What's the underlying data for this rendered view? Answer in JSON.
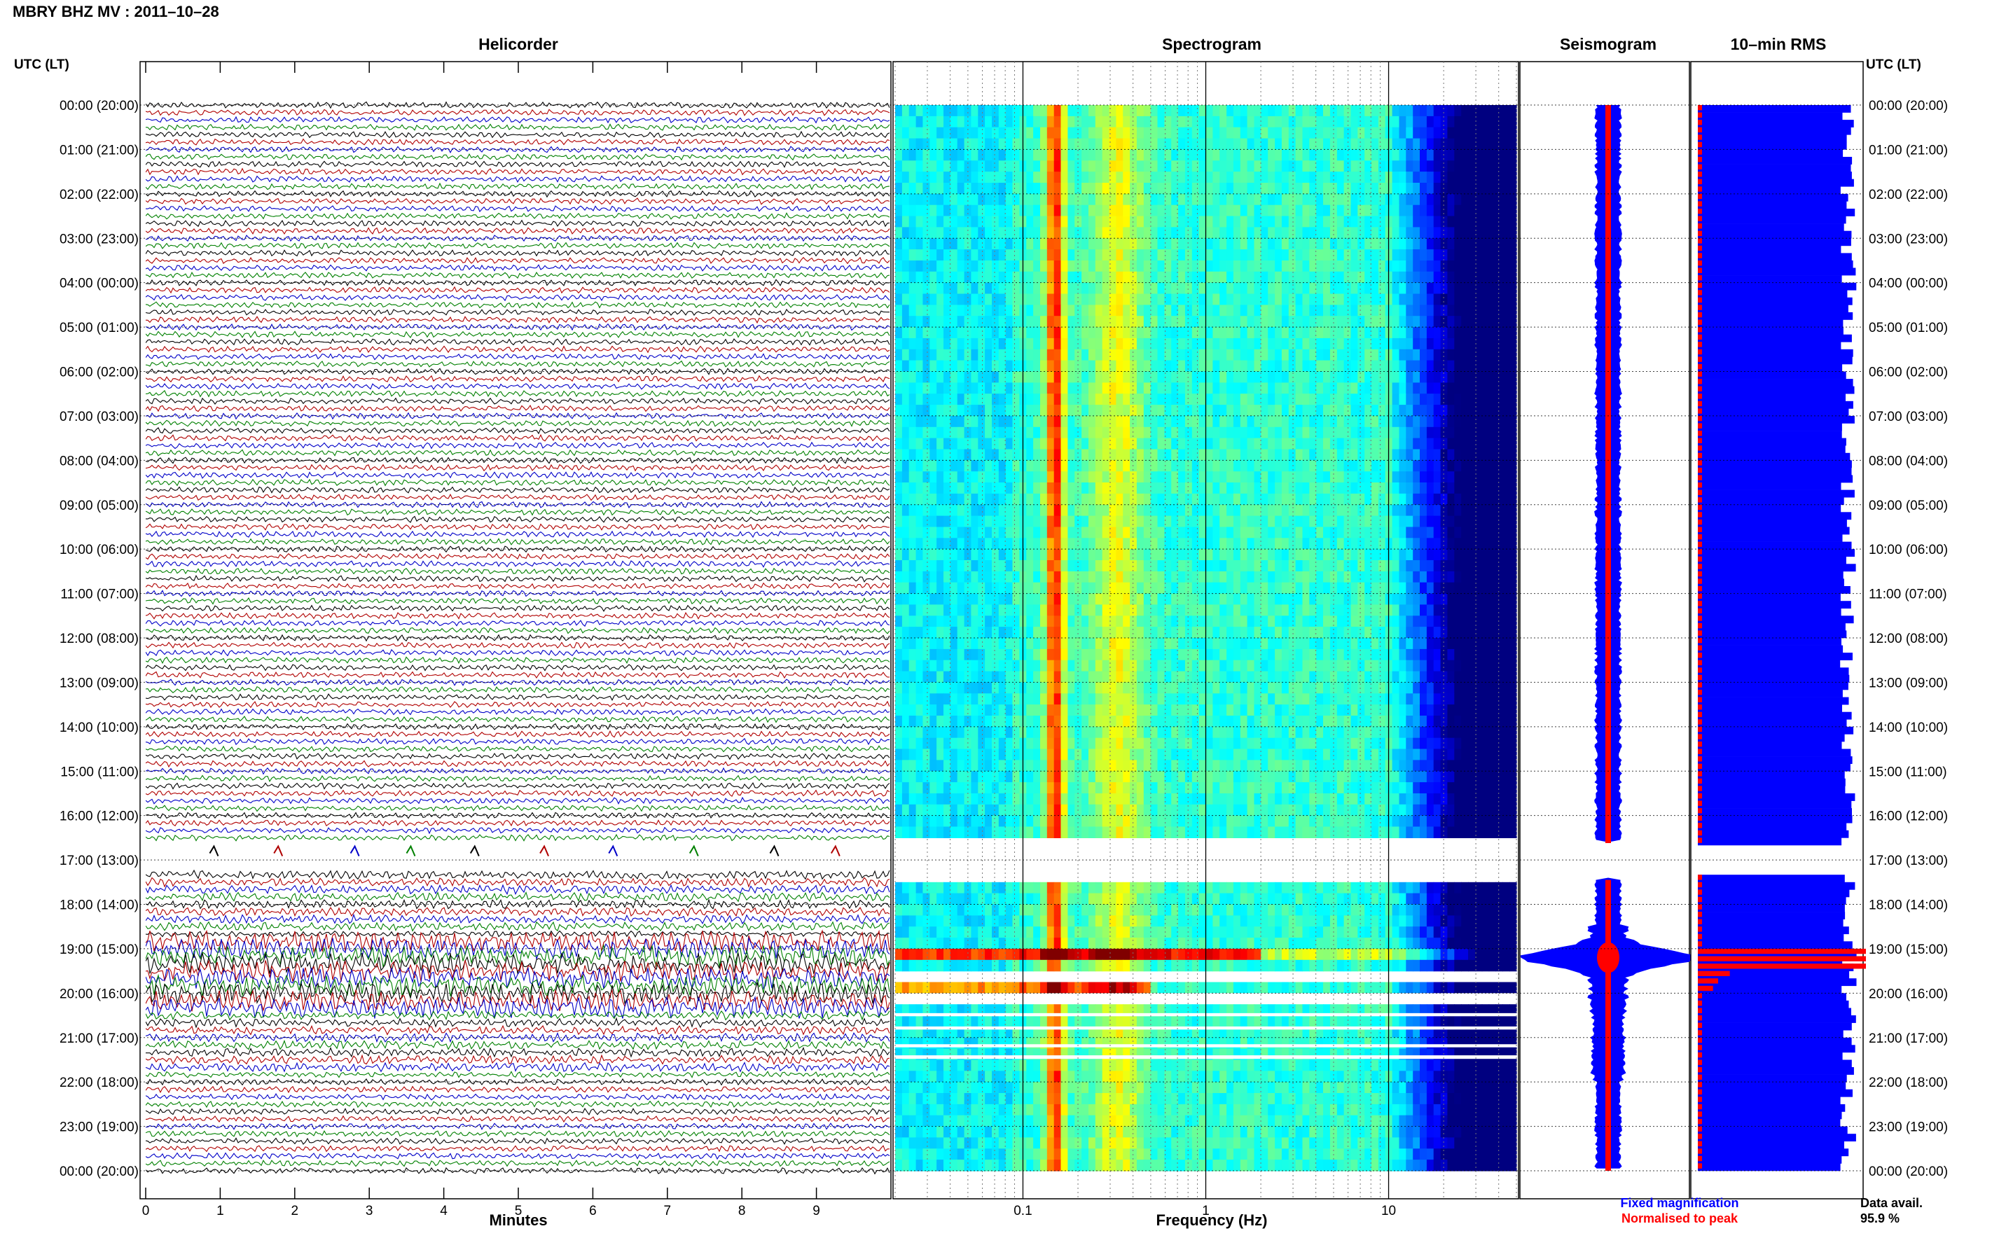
{
  "title": "MBRY BHZ MV : 2011–10–28",
  "colors": {
    "helicorder_traces": [
      "#000000",
      "#b00000",
      "#0000c8",
      "#008000"
    ],
    "fixed_magnification": "#0000ff",
    "normalised_to_peak": "#ff0000"
  },
  "chart_data": {
    "time_axis": {
      "left_label": "UTC (LT)",
      "right_label": "UTC (LT)",
      "ticks": [
        "00:00 (20:00)",
        "01:00 (21:00)",
        "02:00 (22:00)",
        "03:00 (23:00)",
        "04:00 (00:00)",
        "05:00 (01:00)",
        "06:00 (02:00)",
        "07:00 (03:00)",
        "08:00 (04:00)",
        "09:00 (05:00)",
        "10:00 (06:00)",
        "11:00 (07:00)",
        "12:00 (08:00)",
        "13:00 (09:00)",
        "14:00 (10:00)",
        "15:00 (11:00)",
        "16:00 (12:00)",
        "17:00 (13:00)",
        "18:00 (14:00)",
        "19:00 (15:00)",
        "20:00 (16:00)",
        "21:00 (17:00)",
        "22:00 (18:00)",
        "23:00 (19:00)",
        "00:00 (20:00)"
      ],
      "range_hours": [
        0,
        24
      ]
    },
    "panels": [
      {
        "type": "helicorder",
        "title": "Helicorder",
        "xlabel": "Minutes",
        "xticks": [
          "0",
          "1",
          "2",
          "3",
          "4",
          "5",
          "6",
          "7",
          "8",
          "9"
        ],
        "xlim": [
          0,
          10
        ],
        "gap_hours": [
          [
            16.6,
            17.2
          ]
        ],
        "high_activity_hours": [
          18.8,
          20.4
        ]
      },
      {
        "type": "heatmap",
        "title": "Spectrogram",
        "xlabel": "Frequency (Hz)",
        "xscale": "log",
        "xticks": [
          "0.1",
          "1",
          "10"
        ],
        "xlim": [
          0.02,
          50
        ],
        "peak_band_hz": [
          0.13,
          0.17
        ],
        "secondary_band_hz": [
          0.25,
          0.45
        ],
        "rolloff_hz": 20,
        "gap_hours": [
          [
            16.6,
            17.45
          ],
          [
            19.58,
            19.66
          ],
          [
            20.0,
            20.15
          ],
          [
            20.45,
            20.52
          ],
          [
            20.75,
            20.82
          ],
          [
            21.15,
            21.22
          ],
          [
            21.4,
            21.48
          ]
        ],
        "strong_event_hours": [
          18.95,
          19.35
        ]
      },
      {
        "type": "area",
        "title": "Seismogram",
        "legend": [
          {
            "label": "Fixed magnification",
            "color": "#0000ff"
          },
          {
            "label": "Normalised to peak",
            "color": "#ff0000"
          }
        ],
        "peak_hour": 19.2
      },
      {
        "type": "bar",
        "title": "10–min RMS",
        "footer_label": "Data avail.",
        "footer_value": "95.9 %",
        "peak_hour": 19.2
      }
    ]
  }
}
